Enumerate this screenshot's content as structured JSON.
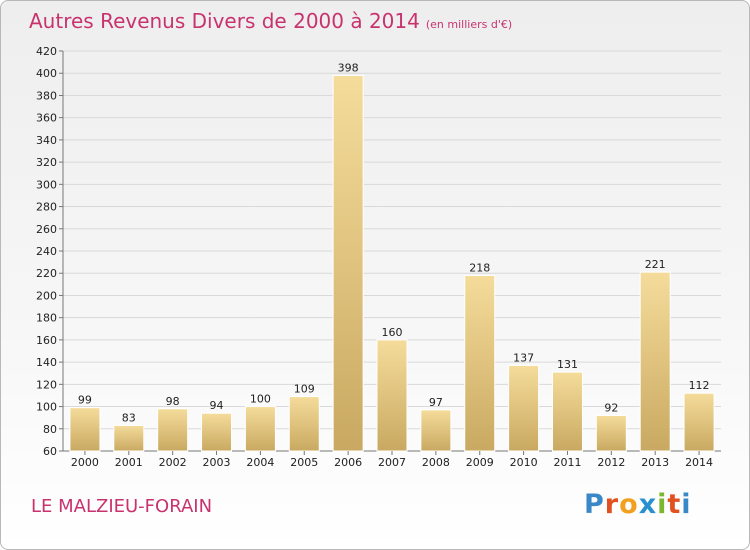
{
  "chart_data": {
    "type": "bar",
    "title": "Autres Revenus Divers de 2000 à 2014",
    "subtitle": "(en milliers d'€)",
    "categories": [
      "2000",
      "2001",
      "2002",
      "2003",
      "2004",
      "2005",
      "2006",
      "2007",
      "2008",
      "2009",
      "2010",
      "2011",
      "2012",
      "2013",
      "2014"
    ],
    "values": [
      99,
      83,
      98,
      94,
      100,
      109,
      398,
      160,
      97,
      218,
      137,
      131,
      92,
      221,
      112
    ],
    "ylim": [
      60,
      420
    ],
    "ytick_step": 20,
    "grid": true,
    "colors": {
      "bar_light": "#f5dc9b",
      "bar_dark": "#c9a961",
      "grid": "#d9d9d9",
      "title": "#c8336e"
    }
  },
  "footer": {
    "place_name": "LE MALZIEU-FORAIN"
  },
  "brand": {
    "text": "Proxiti",
    "letters": [
      {
        "ch": "P",
        "color": "#3a88c8"
      },
      {
        "ch": "r",
        "color": "#e2501f"
      },
      {
        "ch": "o",
        "color": "#f2a01f"
      },
      {
        "ch": "x",
        "color": "#2a8fcf"
      },
      {
        "ch": "i",
        "color": "#7cb82f"
      },
      {
        "ch": "t",
        "color": "#e2501f"
      },
      {
        "ch": "i",
        "color": "#3a88c8"
      }
    ]
  }
}
